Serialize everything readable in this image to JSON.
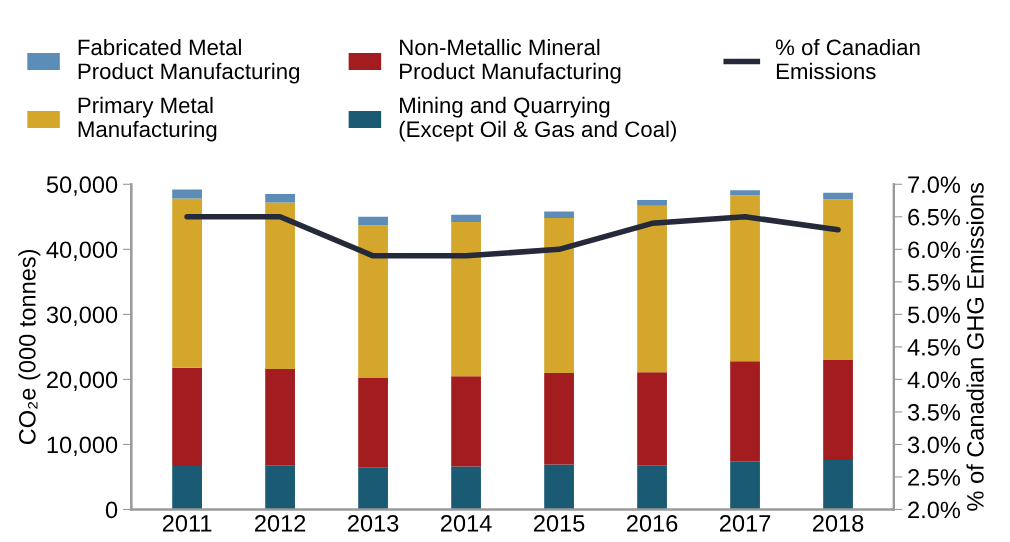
{
  "chart_data": {
    "type": "bar",
    "stacked": true,
    "categories": [
      "2011",
      "2012",
      "2013",
      "2014",
      "2015",
      "2016",
      "2017",
      "2018"
    ],
    "ylabel": "CO₂e (000 tonnes)",
    "y2label": "% of Canadian GHG Emissions",
    "series": [
      {
        "name": "Mining and Quarrying\n(Except Oil & Gas and Coal)",
        "color": "#1a5a73",
        "values": [
          6700,
          6800,
          6400,
          6600,
          6900,
          6800,
          7400,
          7600
        ]
      },
      {
        "name": "Non-Metallic Mineral\nProduct Manufacturing",
        "color": "#a31c20",
        "values": [
          15100,
          14800,
          13900,
          13900,
          14100,
          14300,
          15400,
          15400
        ]
      },
      {
        "name": "Primary Metal\nManufacturing",
        "color": "#d4a72c",
        "values": [
          26000,
          25600,
          23400,
          23700,
          23800,
          25600,
          25500,
          24700
        ]
      },
      {
        "name": "Fabricated Metal\nProduct Manufacturing",
        "color": "#5b8db8",
        "values": [
          1400,
          1300,
          1300,
          1100,
          1000,
          900,
          800,
          1000
        ]
      },
      {
        "name": "% of Canadian\nEmissions",
        "type": "line",
        "axis": "y2",
        "color": "#252a3a",
        "values": [
          6.5,
          6.5,
          5.9,
          5.9,
          6.0,
          6.4,
          6.5,
          6.3
        ]
      }
    ],
    "ylim": [
      0,
      50000
    ],
    "yticks": [
      0,
      {
        "value": 10000,
        "label": "10,000"
      },
      {
        "value": 20000,
        "label": "20,000"
      },
      {
        "value": 30000,
        "label": "30,000"
      },
      {
        "value": 40000,
        "label": "40,000"
      },
      {
        "value": 50000,
        "label": "50,000"
      }
    ],
    "y2lim": [
      2.0,
      7.0
    ],
    "y2ticks": [
      {
        "value": 2.0,
        "label": "2.0%"
      },
      {
        "value": 2.5,
        "label": "2.5%"
      },
      {
        "value": 3.0,
        "label": "3.0%"
      },
      {
        "value": 3.5,
        "label": "3.5%"
      },
      {
        "value": 4.0,
        "label": "4.0%"
      },
      {
        "value": 4.5,
        "label": "4.5%"
      },
      {
        "value": 5.0,
        "label": "5.0%"
      },
      {
        "value": 5.5,
        "label": "5.5%"
      },
      {
        "value": 6.0,
        "label": "6.0%"
      },
      {
        "value": 6.5,
        "label": "6.5%"
      },
      {
        "value": 7.0,
        "label": "7.0%"
      }
    ],
    "grid": false,
    "legend": "top"
  }
}
